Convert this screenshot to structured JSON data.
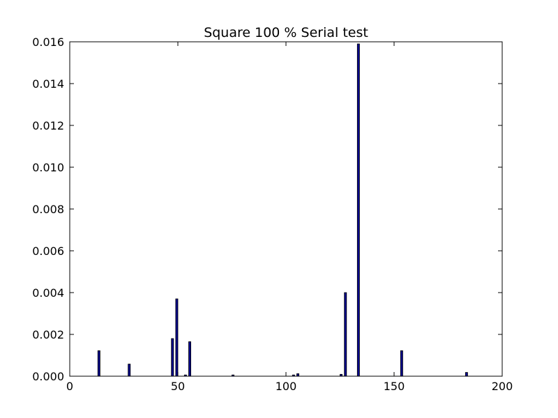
{
  "chart_data": {
    "type": "bar",
    "title": "Square 100 % Serial test",
    "xlabel": "",
    "ylabel": "",
    "xlim": [
      0,
      200
    ],
    "ylim": [
      0,
      0.016
    ],
    "grid": false,
    "bar_width": 1,
    "bar_color": "#00008b",
    "x_ticks": [
      "0",
      "50",
      "100",
      "150",
      "200"
    ],
    "y_ticks": [
      "0.000",
      "0.002",
      "0.004",
      "0.006",
      "0.008",
      "0.010",
      "0.012",
      "0.014",
      "0.016"
    ],
    "x": [
      13,
      27,
      47,
      49,
      53,
      55,
      75,
      103,
      105,
      125,
      127,
      133,
      153,
      183
    ],
    "values": [
      0.00122,
      0.00058,
      0.0018,
      0.0037,
      6e-05,
      0.00165,
      6e-05,
      6e-05,
      0.00012,
      9e-05,
      0.004,
      0.0159,
      0.00122,
      0.00018
    ]
  }
}
